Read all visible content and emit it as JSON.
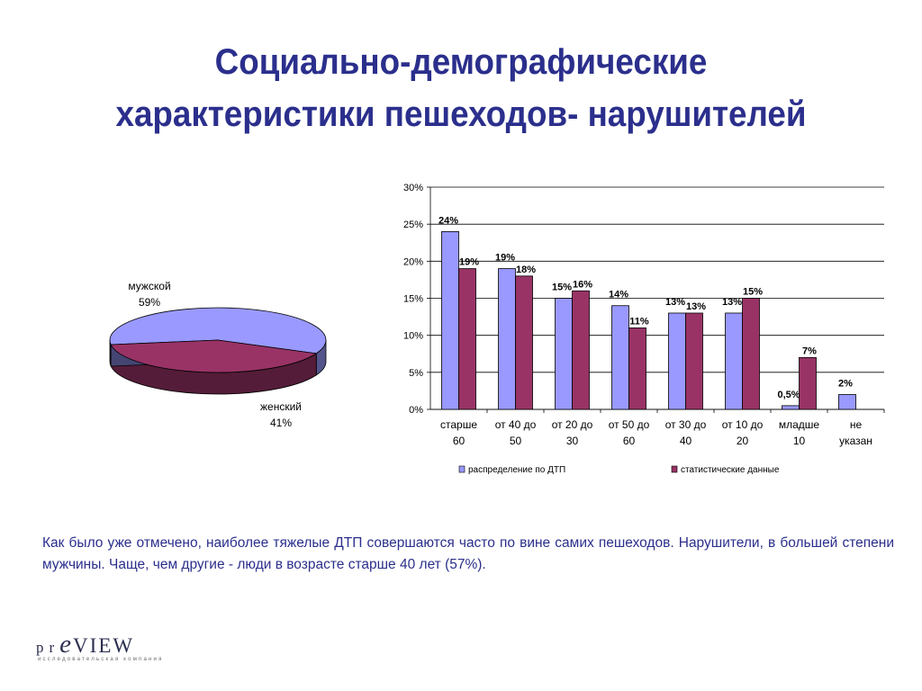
{
  "title": {
    "line1": "Социально-демографические",
    "line2": "характеристики пешеходов- нарушителей"
  },
  "chart_data": [
    {
      "type": "pie",
      "slices": [
        {
          "label": "мужской",
          "value": 59,
          "display": "59%",
          "color": "#9999ff"
        },
        {
          "label": "женский",
          "value": 41,
          "display": "41%",
          "color": "#993366"
        }
      ]
    },
    {
      "type": "bar",
      "categories": [
        "старше 60",
        "от 40 до 50",
        "от 20 до 30",
        "от 50 до 60",
        "от 30 до 40",
        "от 10 до 20",
        "младше 10",
        "не указан"
      ],
      "category_lines": [
        [
          "старше",
          "60"
        ],
        [
          "от 40 до",
          "50"
        ],
        [
          "от 20 до",
          "30"
        ],
        [
          "от 50 до",
          "60"
        ],
        [
          "от 30 до",
          "40"
        ],
        [
          "от 10 до",
          "20"
        ],
        [
          "младше",
          "10"
        ],
        [
          "не",
          "указан"
        ]
      ],
      "series": [
        {
          "name": "распределение по ДТП",
          "color": "#9999ff",
          "values": [
            24,
            19,
            15,
            14,
            13,
            13,
            0.5,
            2
          ],
          "labels": [
            "24%",
            "19%",
            "15%",
            "14%",
            "13%",
            "13%",
            "0,5%",
            "2%"
          ]
        },
        {
          "name": "статистические данные",
          "color": "#993366",
          "values": [
            19,
            18,
            16,
            11,
            13,
            15,
            7,
            null
          ],
          "labels": [
            "19%",
            "18%",
            "16%",
            "11%",
            "13%",
            "15%",
            "7%",
            ""
          ]
        }
      ],
      "ylim": [
        0,
        30
      ],
      "yticks": [
        0,
        5,
        10,
        15,
        20,
        25,
        30
      ],
      "ytick_labels": [
        "0%",
        "5%",
        "10%",
        "15%",
        "20%",
        "25%",
        "30%"
      ],
      "grid": true,
      "legend": "bottom"
    }
  ],
  "body_text": "Как было уже отмечено, наиболее тяжелые ДТП совершаются часто по вине самих пешеходов. Нарушители, в большей степени мужчины. Чаще, чем другие - люди в возрасте старше 40 лет (57%).",
  "logo": {
    "p": "p",
    "r": "r",
    "e": "e",
    "view": "VIEW",
    "subtitle": "исследовательская компания"
  }
}
